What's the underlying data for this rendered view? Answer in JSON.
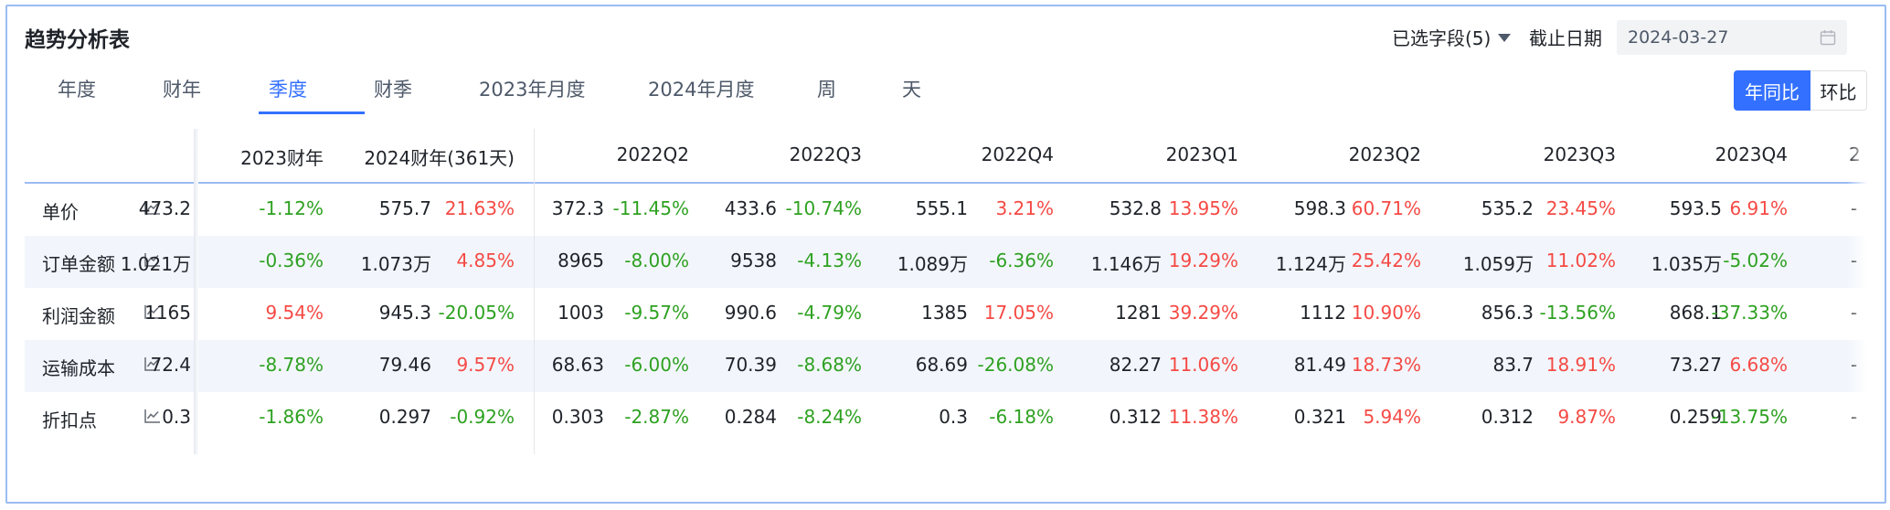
{
  "title": "趋势分析表",
  "field_select": {
    "label": "已选字段(5)"
  },
  "deadline": {
    "label": "截止日期",
    "value": "2024-03-27"
  },
  "tabs": [
    "年度",
    "财年",
    "季度",
    "财季",
    "2023年月度",
    "2024年月度",
    "周",
    "天"
  ],
  "active_tab": "季度",
  "compare": {
    "yoy": "年同比",
    "mom": "环比"
  },
  "colors": {
    "accent": "#3370ff",
    "increase": "#f54a45",
    "decrease": "#2ea121",
    "row_alt": "#f2f6fc"
  },
  "table": {
    "columns": [
      "2023财年",
      "2024财年(361天)",
      "2022Q2",
      "2022Q3",
      "2022Q4",
      "2023Q1",
      "2023Q2",
      "2023Q3",
      "2023Q4",
      "2"
    ],
    "rows": [
      {
        "label": "单价",
        "cells": [
          {
            "v": "473.2",
            "p": "-1.12%"
          },
          {
            "v": "575.7",
            "p": "21.63%"
          },
          {
            "v": "372.3",
            "p": "-11.45%"
          },
          {
            "v": "433.6",
            "p": "-10.74%"
          },
          {
            "v": "555.1",
            "p": "3.21%"
          },
          {
            "v": "532.8",
            "p": "13.95%"
          },
          {
            "v": "598.3",
            "p": "60.71%"
          },
          {
            "v": "535.2",
            "p": "23.45%"
          },
          {
            "v": "593.5",
            "p": "6.91%"
          },
          {
            "v": "-",
            "p": ""
          }
        ]
      },
      {
        "label": "订单金额",
        "cells": [
          {
            "v": "1.021万",
            "p": "-0.36%"
          },
          {
            "v": "1.073万",
            "p": "4.85%"
          },
          {
            "v": "8965",
            "p": "-8.00%"
          },
          {
            "v": "9538",
            "p": "-4.13%"
          },
          {
            "v": "1.089万",
            "p": "-6.36%"
          },
          {
            "v": "1.146万",
            "p": "19.29%"
          },
          {
            "v": "1.124万",
            "p": "25.42%"
          },
          {
            "v": "1.059万",
            "p": "11.02%"
          },
          {
            "v": "1.035万",
            "p": "-5.02%"
          },
          {
            "v": "-",
            "p": ""
          }
        ]
      },
      {
        "label": "利润金额",
        "cells": [
          {
            "v": "1165",
            "p": "9.54%"
          },
          {
            "v": "945.3",
            "p": "-20.05%"
          },
          {
            "v": "1003",
            "p": "-9.57%"
          },
          {
            "v": "990.6",
            "p": "-4.79%"
          },
          {
            "v": "1385",
            "p": "17.05%"
          },
          {
            "v": "1281",
            "p": "39.29%"
          },
          {
            "v": "1112",
            "p": "10.90%"
          },
          {
            "v": "856.3",
            "p": "-13.56%"
          },
          {
            "v": "868.1",
            "p": "-37.33%"
          },
          {
            "v": "-",
            "p": ""
          }
        ]
      },
      {
        "label": "运输成本",
        "cells": [
          {
            "v": "72.4",
            "p": "-8.78%"
          },
          {
            "v": "79.46",
            "p": "9.57%"
          },
          {
            "v": "68.63",
            "p": "-6.00%"
          },
          {
            "v": "70.39",
            "p": "-8.68%"
          },
          {
            "v": "68.69",
            "p": "-26.08%"
          },
          {
            "v": "82.27",
            "p": "11.06%"
          },
          {
            "v": "81.49",
            "p": "18.73%"
          },
          {
            "v": "83.7",
            "p": "18.91%"
          },
          {
            "v": "73.27",
            "p": "6.68%"
          },
          {
            "v": "-",
            "p": ""
          }
        ]
      },
      {
        "label": "折扣点",
        "cells": [
          {
            "v": "0.3",
            "p": "-1.86%"
          },
          {
            "v": "0.297",
            "p": "-0.92%"
          },
          {
            "v": "0.303",
            "p": "-2.87%"
          },
          {
            "v": "0.284",
            "p": "-8.24%"
          },
          {
            "v": "0.3",
            "p": "-6.18%"
          },
          {
            "v": "0.312",
            "p": "11.38%"
          },
          {
            "v": "0.321",
            "p": "5.94%"
          },
          {
            "v": "0.312",
            "p": "9.87%"
          },
          {
            "v": "0.259",
            "p": "-13.75%"
          },
          {
            "v": "-",
            "p": ""
          }
        ]
      }
    ]
  }
}
